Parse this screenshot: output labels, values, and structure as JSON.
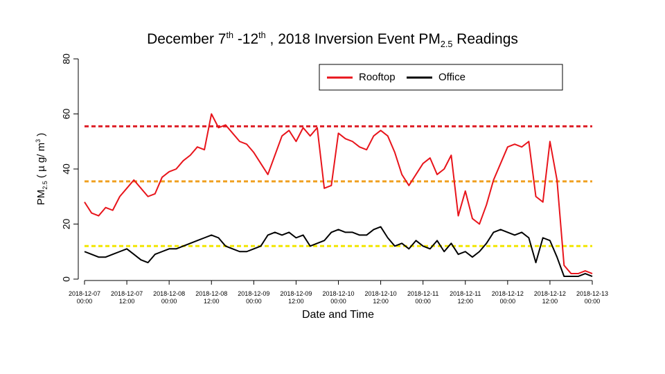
{
  "chart_data": {
    "type": "line",
    "title_parts": [
      "December 7",
      "th",
      " -12",
      "th",
      " , 2018 Inversion Event PM",
      "2.5",
      " Readings"
    ],
    "ylabel_parts": [
      "PM",
      "2.5",
      " ( µ g/ m",
      "3",
      " )"
    ],
    "xlabel": "Date and Time",
    "x": [
      "2018-12-07 00:00",
      "2018-12-07 02:00",
      "2018-12-07 04:00",
      "2018-12-07 06:00",
      "2018-12-07 08:00",
      "2018-12-07 10:00",
      "2018-12-07 12:00",
      "2018-12-07 14:00",
      "2018-12-07 16:00",
      "2018-12-07 18:00",
      "2018-12-07 20:00",
      "2018-12-07 22:00",
      "2018-12-08 00:00",
      "2018-12-08 02:00",
      "2018-12-08 04:00",
      "2018-12-08 06:00",
      "2018-12-08 08:00",
      "2018-12-08 10:00",
      "2018-12-08 12:00",
      "2018-12-08 14:00",
      "2018-12-08 16:00",
      "2018-12-08 18:00",
      "2018-12-08 20:00",
      "2018-12-08 22:00",
      "2018-12-09 00:00",
      "2018-12-09 02:00",
      "2018-12-09 04:00",
      "2018-12-09 06:00",
      "2018-12-09 08:00",
      "2018-12-09 10:00",
      "2018-12-09 12:00",
      "2018-12-09 14:00",
      "2018-12-09 16:00",
      "2018-12-09 18:00",
      "2018-12-09 20:00",
      "2018-12-09 22:00",
      "2018-12-10 00:00",
      "2018-12-10 02:00",
      "2018-12-10 04:00",
      "2018-12-10 06:00",
      "2018-12-10 08:00",
      "2018-12-10 10:00",
      "2018-12-10 12:00",
      "2018-12-10 14:00",
      "2018-12-10 16:00",
      "2018-12-10 18:00",
      "2018-12-10 20:00",
      "2018-12-10 22:00",
      "2018-12-11 00:00",
      "2018-12-11 02:00",
      "2018-12-11 04:00",
      "2018-12-11 06:00",
      "2018-12-11 08:00",
      "2018-12-11 10:00",
      "2018-12-11 12:00",
      "2018-12-11 14:00",
      "2018-12-11 16:00",
      "2018-12-11 18:00",
      "2018-12-11 20:00",
      "2018-12-11 22:00",
      "2018-12-12 00:00",
      "2018-12-12 02:00",
      "2018-12-12 04:00",
      "2018-12-12 06:00",
      "2018-12-12 08:00",
      "2018-12-12 10:00",
      "2018-12-12 12:00",
      "2018-12-12 14:00",
      "2018-12-12 16:00",
      "2018-12-12 18:00",
      "2018-12-12 20:00",
      "2018-12-12 22:00",
      "2018-12-13 00:00"
    ],
    "series": [
      {
        "name": "Rooftop",
        "color": "#e8141b",
        "values": [
          28,
          24,
          23,
          26,
          25,
          30,
          33,
          36,
          33,
          30,
          31,
          37,
          39,
          40,
          43,
          45,
          48,
          47,
          60,
          55,
          56,
          53,
          50,
          49,
          46,
          42,
          38,
          45,
          52,
          54,
          50,
          55,
          52,
          55,
          33,
          34,
          53,
          51,
          50,
          48,
          47,
          52,
          54,
          52,
          46,
          38,
          34,
          38,
          42,
          44,
          38,
          40,
          45,
          23,
          32,
          22,
          20,
          27,
          36,
          42,
          48,
          49,
          48,
          50,
          30,
          28,
          50,
          36,
          5,
          2,
          2,
          3,
          2
        ]
      },
      {
        "name": "Office",
        "color": "#000000",
        "values": [
          10,
          9,
          8,
          8,
          9,
          10,
          11,
          9,
          7,
          6,
          9,
          10,
          11,
          11,
          12,
          13,
          14,
          15,
          16,
          15,
          12,
          11,
          10,
          10,
          11,
          12,
          16,
          17,
          16,
          17,
          15,
          16,
          12,
          13,
          14,
          17,
          18,
          17,
          17,
          16,
          16,
          18,
          19,
          15,
          12,
          13,
          11,
          14,
          12,
          11,
          14,
          10,
          13,
          9,
          10,
          8,
          10,
          13,
          17,
          18,
          17,
          16,
          17,
          15,
          6,
          15,
          14,
          8,
          1,
          1,
          1,
          2,
          1
        ]
      }
    ],
    "reference_lines": [
      {
        "value": 55.5,
        "color": "#dd1f26"
      },
      {
        "value": 35.5,
        "color": "#f0a020"
      },
      {
        "value": 12,
        "color": "#f2e600"
      }
    ],
    "xlim": [
      "2018-12-07 00:00",
      "2018-12-13 00:00"
    ],
    "xticks": [
      "2018-12-07 00:00",
      "2018-12-07 12:00",
      "2018-12-08 00:00",
      "2018-12-08 12:00",
      "2018-12-09 00:00",
      "2018-12-09 12:00",
      "2018-12-10 00:00",
      "2018-12-10 12:00",
      "2018-12-11 00:00",
      "2018-12-11 12:00",
      "2018-12-12 00:00",
      "2018-12-12 12:00",
      "2018-12-13 00:00"
    ],
    "ylim": [
      0,
      80
    ],
    "yticks": [
      0,
      20,
      40,
      60,
      80
    ]
  }
}
